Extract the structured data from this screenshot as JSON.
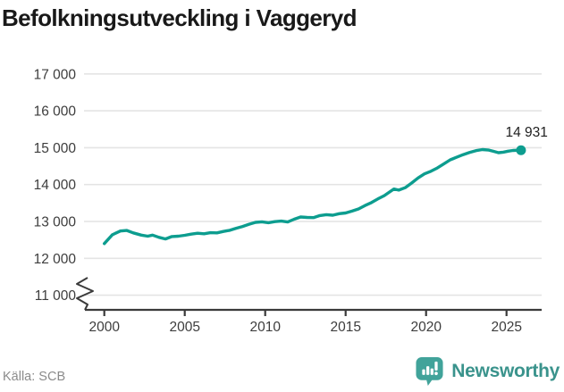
{
  "header": {
    "title": "Befolkningsutveckling i Vaggeryd"
  },
  "footer": {
    "source": "Källa: SCB",
    "brand": "Newsworthy",
    "brand_icon": "bar-chart-speech-bubble"
  },
  "colors": {
    "line": "#0d9d8f",
    "grid": "#e4e4e4",
    "axis": "#3a3a3a",
    "tick_label": "#3d3d3d",
    "end_label": "#1f1f1f",
    "title": "#191919",
    "source": "#8b8b8b",
    "brand": "#3a938c",
    "brand_icon": "#41a39a"
  },
  "chart_data": {
    "type": "line",
    "title": "Befolkningsutveckling i Vaggeryd",
    "xlabel": "",
    "ylabel": "",
    "source": "SCB",
    "grid": "horizontal",
    "axis_break": true,
    "ylim": [
      11000,
      17000
    ],
    "xlim": [
      2000,
      2026
    ],
    "x_ticks": [
      2000,
      2005,
      2010,
      2015,
      2020,
      2025
    ],
    "y_ticks": [
      11000,
      12000,
      13000,
      14000,
      15000,
      16000,
      17000
    ],
    "y_tick_labels": [
      "11 000",
      "12 000",
      "13 000",
      "14 000",
      "15 000",
      "16 000",
      "17 000"
    ],
    "end_label": "14 931",
    "end_value": 14931,
    "series": [
      {
        "name": "Befolkning",
        "x": [
          2000.0,
          2000.5,
          2001.0,
          2001.4,
          2001.8,
          2002.3,
          2002.7,
          2003.0,
          2003.4,
          2003.8,
          2004.2,
          2004.6,
          2005.0,
          2005.4,
          2005.8,
          2006.2,
          2006.6,
          2007.0,
          2007.4,
          2007.8,
          2008.2,
          2008.6,
          2009.0,
          2009.4,
          2009.8,
          2010.2,
          2010.6,
          2011.0,
          2011.4,
          2011.8,
          2012.2,
          2012.6,
          2013.0,
          2013.4,
          2013.8,
          2014.2,
          2014.6,
          2015.0,
          2015.4,
          2015.8,
          2016.2,
          2016.6,
          2017.0,
          2017.4,
          2017.8,
          2018.0,
          2018.3,
          2018.7,
          2019.1,
          2019.5,
          2019.9,
          2020.3,
          2020.7,
          2021.1,
          2021.5,
          2021.9,
          2022.3,
          2022.7,
          2023.1,
          2023.5,
          2023.9,
          2024.2,
          2024.5,
          2024.8,
          2025.1,
          2025.4,
          2025.9
        ],
        "y": [
          12400,
          12640,
          12740,
          12755,
          12690,
          12630,
          12600,
          12630,
          12570,
          12525,
          12590,
          12600,
          12625,
          12655,
          12680,
          12665,
          12695,
          12690,
          12730,
          12760,
          12815,
          12865,
          12925,
          12975,
          12990,
          12965,
          12995,
          13010,
          12985,
          13060,
          13120,
          13110,
          13105,
          13160,
          13185,
          13170,
          13210,
          13230,
          13280,
          13340,
          13430,
          13510,
          13610,
          13700,
          13820,
          13880,
          13850,
          13915,
          14040,
          14180,
          14290,
          14360,
          14450,
          14560,
          14670,
          14740,
          14810,
          14870,
          14920,
          14950,
          14935,
          14900,
          14865,
          14880,
          14905,
          14925,
          14931
        ]
      }
    ]
  }
}
